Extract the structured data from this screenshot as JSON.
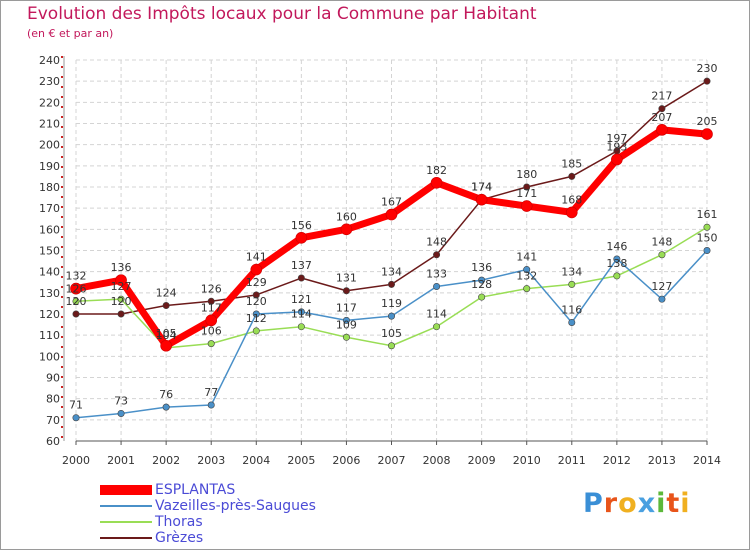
{
  "header": {
    "title": "Evolution des Impôts locaux pour la Commune par Habitant",
    "subtitle": "(en € et par an)"
  },
  "chart_data": {
    "type": "line",
    "title": "Evolution des Impôts locaux pour la Commune par Habitant",
    "subtitle": "(en € et par an)",
    "xlabel": "",
    "ylabel": "",
    "x": [
      "2000",
      "2001",
      "2002",
      "2003",
      "2004",
      "2005",
      "2006",
      "2007",
      "2008",
      "2009",
      "2010",
      "2011",
      "2012",
      "2013",
      "2014"
    ],
    "ylim": [
      60,
      240
    ],
    "yticks": [
      60,
      70,
      80,
      90,
      100,
      110,
      120,
      130,
      140,
      150,
      160,
      170,
      180,
      190,
      200,
      210,
      220,
      230,
      240
    ],
    "grid": true,
    "legend_position": "bottom-left",
    "series": [
      {
        "name": "ESPLANTAS",
        "color": "#ff0000",
        "values": [
          132,
          136,
          105,
          117,
          141,
          156,
          160,
          167,
          182,
          174,
          171,
          168,
          193,
          207,
          205
        ]
      },
      {
        "name": "Vazeilles-près-Saugues",
        "color": "#4a90c8",
        "values": [
          71,
          73,
          76,
          77,
          120,
          121,
          117,
          119,
          133,
          136,
          141,
          116,
          146,
          127,
          150
        ]
      },
      {
        "name": "Thoras",
        "color": "#99dd55",
        "values": [
          126,
          127,
          104,
          106,
          112,
          114,
          109,
          105,
          114,
          128,
          132,
          134,
          138,
          148,
          161
        ]
      },
      {
        "name": "Grèzes",
        "color": "#6b1a1a",
        "values": [
          120,
          120,
          124,
          126,
          129,
          137,
          131,
          134,
          148,
          174,
          180,
          185,
          197,
          217,
          230
        ]
      }
    ]
  },
  "legend": {
    "items": [
      "ESPLANTAS",
      "Vazeilles-près-Saugues",
      "Thoras",
      "Grèzes"
    ]
  },
  "logo": {
    "letters": [
      "P",
      "r",
      "o",
      "x",
      "i",
      "t",
      "i"
    ],
    "colors": [
      "#3a8fd6",
      "#e8541a",
      "#f0b020",
      "#4aa0e0",
      "#5cb83a",
      "#e8541a",
      "#f0b020"
    ]
  }
}
